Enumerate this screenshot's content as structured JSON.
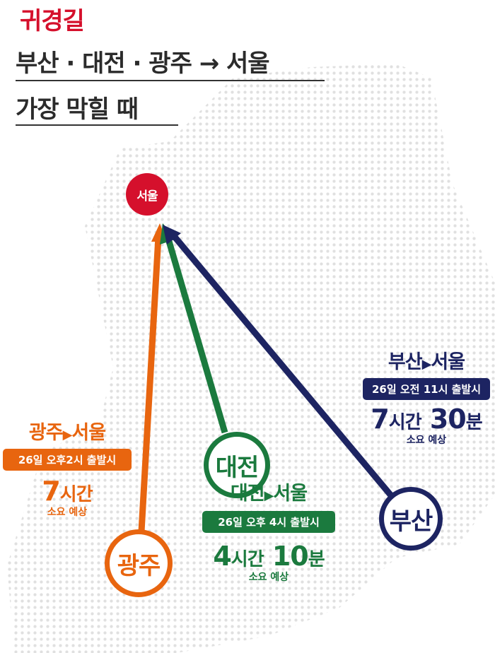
{
  "header": {
    "kicker": "귀경길",
    "line1": "부산 · 대전 · 광주 → 서울",
    "line2": "가장 막힐 때"
  },
  "colors": {
    "accent": "#d5102c",
    "busan": "#1d2462",
    "daejeon": "#1b7a3e",
    "gwangju": "#e8650f"
  },
  "destination": {
    "label": "서울"
  },
  "routes": {
    "busan": {
      "city": "부산",
      "title_from": "부산",
      "title_to": "서울",
      "departure": "26일 오전 11시 출발시",
      "hours": "7",
      "hours_unit": "시간",
      "minutes": "30",
      "minutes_unit": "분",
      "note": "소요 예상"
    },
    "daejeon": {
      "city": "대전",
      "title_from": "대전",
      "title_to": "서울",
      "departure": "26일 오후 4시 출발시",
      "hours": "4",
      "hours_unit": "시간",
      "minutes": "10",
      "minutes_unit": "분",
      "note": "소요 예상"
    },
    "gwangju": {
      "city": "광주",
      "title_from": "광주",
      "title_to": "서울",
      "departure": "26일 오후2시 출발시",
      "hours": "7",
      "hours_unit": "시간",
      "note": "소요 예상"
    }
  },
  "arrow_symbol": "▶"
}
